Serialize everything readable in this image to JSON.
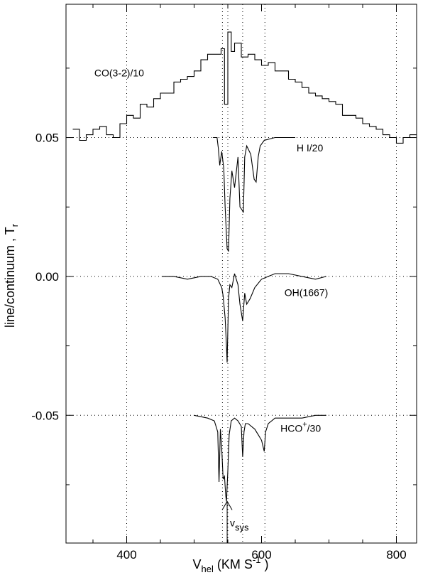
{
  "chart_data": {
    "type": "line",
    "title": "",
    "xlabel": {
      "main": "V",
      "sub": "hel",
      "unit_main": " (KM S",
      "unit_sup": "-1",
      "unit_end": " )"
    },
    "ylabel": {
      "main": "line/continuum , T",
      "sub": "r"
    },
    "xlim": [
      310,
      830
    ],
    "ylim": [
      -0.096,
      0.098
    ],
    "x_ticks": [
      {
        "value": 400,
        "label": "400"
      },
      {
        "value": 600,
        "label": "600"
      },
      {
        "value": 800,
        "label": "800"
      }
    ],
    "y_ticks": [
      {
        "value": 0.05,
        "label": "0.05"
      },
      {
        "value": 0.0,
        "label": "0.00"
      },
      {
        "value": -0.05,
        "label": "-0.05"
      }
    ],
    "minor_x_step": 50,
    "minor_y_step": 0.025,
    "dotted_vertical_lines": [
      400,
      542,
      550,
      572,
      605,
      800
    ],
    "dotted_horizontal_lines": [
      0.05,
      0.0,
      -0.05
    ],
    "series": [
      {
        "name": "CO(3-2)/10",
        "label": {
          "text": "CO(3-2)/10",
          "x": 352,
          "y": 0.072
        },
        "style": "step",
        "x": [
          320,
          330,
          340,
          350,
          360,
          370,
          380,
          390,
          400,
          410,
          420,
          430,
          440,
          450,
          460,
          470,
          480,
          490,
          500,
          510,
          520,
          530,
          540,
          545,
          550,
          555,
          560,
          570,
          580,
          590,
          600,
          610,
          620,
          630,
          640,
          650,
          660,
          670,
          680,
          690,
          700,
          710,
          720,
          730,
          740,
          750,
          760,
          770,
          780,
          790,
          800,
          810,
          820
        ],
        "y": [
          0.053,
          0.049,
          0.051,
          0.053,
          0.054,
          0.051,
          0.05,
          0.055,
          0.058,
          0.057,
          0.062,
          0.061,
          0.064,
          0.066,
          0.066,
          0.07,
          0.071,
          0.072,
          0.074,
          0.078,
          0.08,
          0.08,
          0.082,
          0.062,
          0.088,
          0.081,
          0.084,
          0.079,
          0.08,
          0.078,
          0.076,
          0.077,
          0.074,
          0.074,
          0.071,
          0.07,
          0.068,
          0.066,
          0.065,
          0.064,
          0.063,
          0.062,
          0.058,
          0.058,
          0.057,
          0.055,
          0.054,
          0.053,
          0.051,
          0.05,
          0.048,
          0.05,
          0.051
        ]
      },
      {
        "name": "H I/20",
        "label": {
          "text": "H I/20",
          "x": 652,
          "y": 0.045
        },
        "style": "line",
        "x": [
          528,
          534,
          536,
          538,
          541,
          544,
          546,
          549,
          551,
          553,
          556,
          560,
          565,
          568,
          571,
          573,
          575,
          578,
          584,
          589,
          592,
          595,
          598,
          604,
          620,
          650
        ],
        "y": [
          0.05,
          0.05,
          0.046,
          0.04,
          0.045,
          0.039,
          0.025,
          0.01,
          0.009,
          0.028,
          0.038,
          0.032,
          0.043,
          0.025,
          0.024,
          0.023,
          0.043,
          0.047,
          0.044,
          0.035,
          0.034,
          0.043,
          0.047,
          0.049,
          0.05,
          0.05
        ]
      },
      {
        "name": "OH(1667)",
        "label": {
          "text": "OH(1667)",
          "x": 634,
          "y": -0.007
        },
        "style": "line",
        "x": [
          452,
          470,
          490,
          510,
          525,
          535,
          541,
          543,
          546,
          548,
          549,
          551,
          553,
          556,
          560,
          565,
          568,
          572,
          575,
          578,
          583,
          590,
          600,
          620,
          640,
          660,
          680,
          696
        ],
        "y": [
          0.0,
          0.0,
          -0.001,
          0.0,
          0.0,
          -0.001,
          -0.004,
          -0.007,
          -0.015,
          -0.025,
          -0.031,
          -0.008,
          -0.003,
          -0.004,
          0.001,
          -0.003,
          -0.01,
          -0.016,
          -0.006,
          -0.01,
          -0.008,
          -0.004,
          -0.001,
          0.001,
          0.001,
          0.0,
          -0.001,
          0.0
        ]
      },
      {
        "name": "HCO+/30",
        "label": {
          "text": "HCO",
          "sup": "+",
          "suffix": "/30",
          "x": 628,
          "y": -0.056
        },
        "style": "line",
        "x": [
          500,
          520,
          530,
          535,
          537,
          539,
          541,
          543,
          545,
          547,
          548,
          550,
          552,
          555,
          560,
          565,
          570,
          572,
          574,
          576,
          580,
          590,
          595,
          600,
          604,
          606,
          610,
          620,
          640,
          660,
          680,
          696
        ],
        "y": [
          -0.05,
          -0.051,
          -0.052,
          -0.056,
          -0.074,
          -0.055,
          -0.062,
          -0.073,
          -0.072,
          -0.079,
          -0.081,
          -0.07,
          -0.057,
          -0.052,
          -0.051,
          -0.052,
          -0.054,
          -0.065,
          -0.056,
          -0.053,
          -0.053,
          -0.055,
          -0.057,
          -0.059,
          -0.063,
          -0.056,
          -0.053,
          -0.051,
          -0.051,
          -0.051,
          -0.05,
          -0.05
        ]
      }
    ],
    "annotations": [
      {
        "type": "arrow",
        "x": 549,
        "y_from": -0.096,
        "y_to": -0.081
      },
      {
        "type": "text",
        "text": "v",
        "sub": "sys",
        "x": 549,
        "y": -0.09
      }
    ]
  }
}
